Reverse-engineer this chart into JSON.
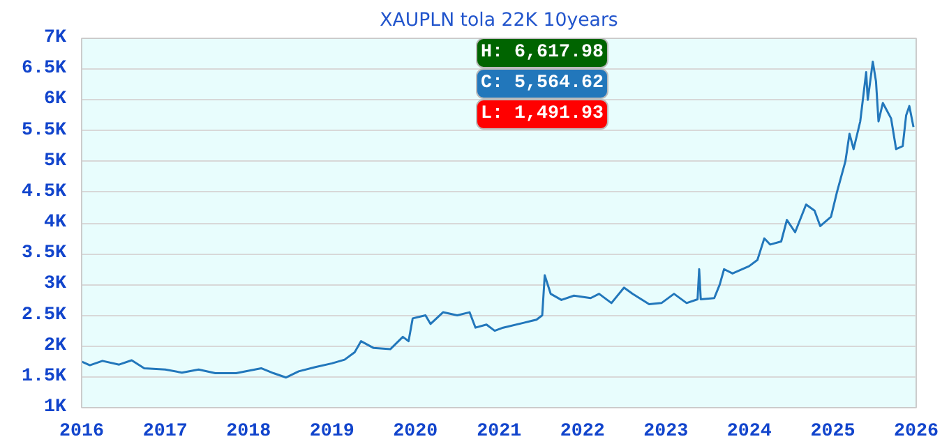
{
  "chart_data": {
    "type": "line",
    "title": "XAUPLN tola 22K 10years",
    "x": [
      "2016-01-01",
      "2016-02-06",
      "2016-04-01",
      "2016-06-13",
      "2016-08-07",
      "2016-10-01",
      "2017-01-01",
      "2017-03-15",
      "2017-05-27",
      "2017-08-08",
      "2017-11-07",
      "2018-01-01",
      "2018-02-25",
      "2018-04-20",
      "2018-06-14",
      "2018-08-08",
      "2018-10-20",
      "2019-01-01",
      "2019-02-25",
      "2019-04-10",
      "2019-05-08",
      "2019-07-02",
      "2019-09-13",
      "2019-11-07",
      "2019-12-02",
      "2019-12-20",
      "2020-02-14",
      "2020-03-07",
      "2020-05-01",
      "2020-07-02",
      "2020-08-25",
      "2020-09-20",
      "2020-11-07",
      "2020-12-13",
      "2021-01-19",
      "2021-04-20",
      "2021-06-14",
      "2021-07-09",
      "2021-07-20",
      "2021-08-15",
      "2021-10-01",
      "2021-11-25",
      "2022-02-06",
      "2022-03-15",
      "2022-05-08",
      "2022-07-02",
      "2022-08-08",
      "2022-10-20",
      "2022-12-13",
      "2023-02-06",
      "2023-04-02",
      "2023-05-20",
      "2023-05-27",
      "2023-06-03",
      "2023-08-01",
      "2023-08-25",
      "2023-09-13",
      "2023-10-20",
      "2024-01-01",
      "2024-02-06",
      "2024-03-07",
      "2024-04-02",
      "2024-05-20",
      "2024-06-14",
      "2024-07-20",
      "2024-09-06",
      "2024-10-13",
      "2024-11-07",
      "2024-12-24",
      "2025-01-19",
      "2025-02-25",
      "2025-03-15",
      "2025-04-02",
      "2025-05-01",
      "2025-05-27",
      "2025-06-03",
      "2025-06-25",
      "2025-07-09",
      "2025-07-20",
      "2025-08-08",
      "2025-09-13",
      "2025-10-05",
      "2025-11-03",
      "2025-11-18",
      "2025-12-02",
      "2025-12-20"
    ],
    "series": [
      {
        "color": "#2277bb",
        "values": [
          1750,
          1690,
          1760,
          1700,
          1770,
          1640,
          1620,
          1570,
          1620,
          1560,
          1560,
          1600,
          1640,
          1560,
          1490,
          1590,
          1660,
          1720,
          1780,
          1900,
          2080,
          1970,
          1950,
          2150,
          2080,
          2450,
          2500,
          2360,
          2550,
          2500,
          2550,
          2300,
          2350,
          2250,
          2300,
          2380,
          2430,
          2500,
          3150,
          2850,
          2750,
          2820,
          2780,
          2850,
          2700,
          2950,
          2850,
          2680,
          2700,
          2850,
          2700,
          2760,
          3250,
          2760,
          2780,
          3000,
          3250,
          3180,
          3300,
          3400,
          3750,
          3650,
          3700,
          4050,
          3850,
          4300,
          4200,
          3950,
          4100,
          4500,
          5000,
          5450,
          5200,
          5650,
          6450,
          6000,
          6620,
          6300,
          5650,
          5950,
          5700,
          5200,
          5250,
          5750,
          5900,
          5560
        ]
      }
    ],
    "xlim": [
      "2016-01-01",
      "2026-01-01"
    ],
    "xticks": [
      "2016",
      "2017",
      "2018",
      "2019",
      "2020",
      "2021",
      "2022",
      "2023",
      "2024",
      "2025",
      "2026"
    ],
    "ylim": [
      1000,
      7000
    ],
    "yticks": [
      {
        "value": 1000,
        "label": "1K"
      },
      {
        "value": 1500,
        "label": "1.5K"
      },
      {
        "value": 2000,
        "label": "2K"
      },
      {
        "value": 2500,
        "label": "2.5K"
      },
      {
        "value": 3000,
        "label": "3K"
      },
      {
        "value": 3500,
        "label": "3.5K"
      },
      {
        "value": 4000,
        "label": "4K"
      },
      {
        "value": 4500,
        "label": "4.5K"
      },
      {
        "value": 5000,
        "label": "5K"
      },
      {
        "value": 5500,
        "label": "5.5K"
      },
      {
        "value": 6000,
        "label": "6K"
      },
      {
        "value": 6500,
        "label": "6.5K"
      },
      {
        "value": 7000,
        "label": "7K"
      }
    ],
    "annotations": [
      "H: 6,617.98",
      "C: 5,564.62",
      "L: 1,491.93"
    ],
    "grid": "y",
    "marker": "none",
    "line_style": "solid"
  }
}
